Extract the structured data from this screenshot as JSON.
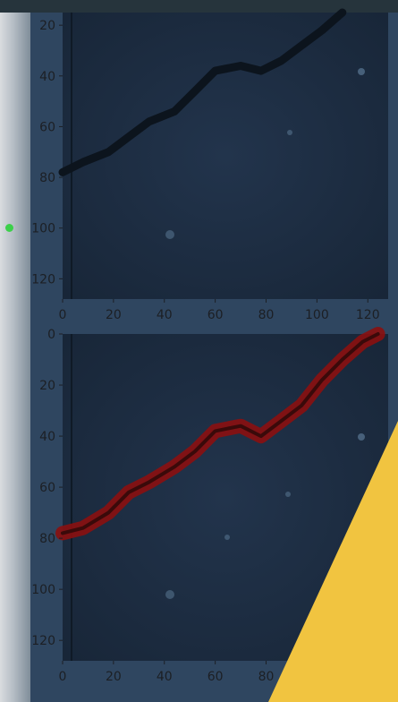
{
  "colors": {
    "image_bg": "#1f2f45",
    "crack_dark": "#0e1620",
    "mask_red": "#8b1010",
    "accent_yellow": "#f1c440",
    "status_green": "#3cd04a"
  },
  "chart_data": [
    {
      "type": "heatmap",
      "title": "",
      "description": "grayscale micrograph with dark crack",
      "xlim": [
        0,
        128
      ],
      "ylim": [
        128,
        15
      ],
      "x_ticks": [
        0,
        20,
        40,
        60,
        80,
        100,
        120
      ],
      "y_ticks": [
        20,
        40,
        60,
        80,
        100,
        120
      ],
      "crack_path": [
        [
          0,
          78
        ],
        [
          8,
          74
        ],
        [
          18,
          70
        ],
        [
          26,
          64
        ],
        [
          34,
          58
        ],
        [
          44,
          54
        ],
        [
          52,
          46
        ],
        [
          60,
          38
        ],
        [
          70,
          36
        ],
        [
          78,
          38
        ],
        [
          86,
          34
        ],
        [
          94,
          28
        ],
        [
          102,
          22
        ],
        [
          110,
          15
        ]
      ]
    },
    {
      "type": "heatmap",
      "title": "",
      "description": "micrograph with predicted crack mask overlay",
      "xlim": [
        0,
        128
      ],
      "ylim": [
        128,
        0
      ],
      "x_ticks": [
        0,
        20,
        40,
        60,
        80
      ],
      "y_ticks": [
        0,
        20,
        40,
        60,
        80,
        100,
        120
      ],
      "crack_path": [
        [
          0,
          78
        ],
        [
          8,
          76
        ],
        [
          18,
          70
        ],
        [
          26,
          62
        ],
        [
          34,
          58
        ],
        [
          44,
          52
        ],
        [
          52,
          46
        ],
        [
          60,
          38
        ],
        [
          70,
          36
        ],
        [
          78,
          40
        ],
        [
          86,
          34
        ],
        [
          94,
          28
        ],
        [
          102,
          18
        ],
        [
          110,
          10
        ],
        [
          118,
          3
        ],
        [
          124,
          0
        ]
      ]
    }
  ]
}
